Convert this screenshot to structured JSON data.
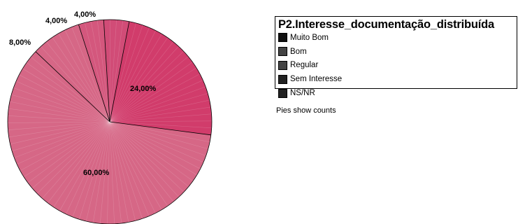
{
  "chart_data": {
    "type": "pie",
    "title": "",
    "slices": [
      {
        "label": "24,00%",
        "value": 24,
        "color": "#d13c6b"
      },
      {
        "label": "60,00%",
        "value": 60,
        "color": "#d66786"
      },
      {
        "label": "8,00%",
        "value": 8,
        "color": "#d66786"
      },
      {
        "label": "4,00%",
        "value": 4,
        "color": "#d4577d"
      },
      {
        "label": "4,00%",
        "value": 4,
        "color": "#d14c77"
      }
    ],
    "legend": {
      "title": "P2.Interesse_documentação_distribuída",
      "placement": "right",
      "items": [
        {
          "label": "Muito Bom",
          "color": "#111111"
        },
        {
          "label": "Bom",
          "color": "#444444"
        },
        {
          "label": "Regular",
          "color": "#444444"
        },
        {
          "label": "Sem Interesse",
          "color": "#222222"
        },
        {
          "label": "NS/NR",
          "color": "#222222"
        }
      ]
    },
    "footnote": "Pies show counts"
  }
}
